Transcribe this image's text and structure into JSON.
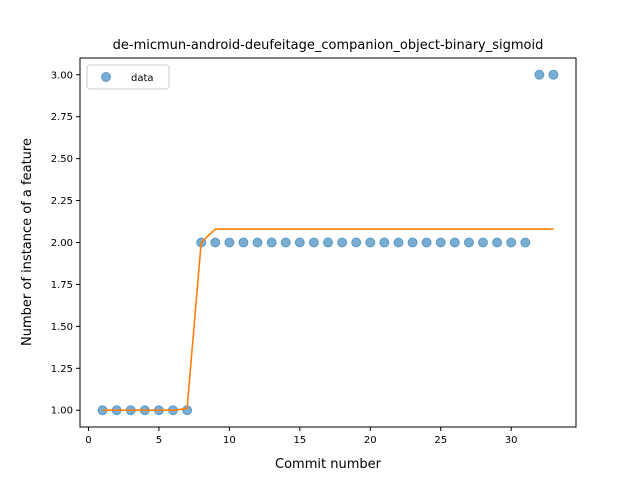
{
  "chart_data": {
    "type": "scatter",
    "title": "de-micmun-android-deufeitage_companion_object-binary_sigmoid",
    "xlabel": "Commit number",
    "ylabel": "Number of instance of a feature",
    "xlim": [
      -0.6,
      34.6
    ],
    "ylim": [
      0.9,
      3.1
    ],
    "xticks": [
      0,
      5,
      10,
      15,
      20,
      25,
      30
    ],
    "yticks": [
      1.0,
      1.25,
      1.5,
      1.75,
      2.0,
      2.25,
      2.5,
      2.75,
      3.0
    ],
    "yticks_labels": [
      "1.00",
      "1.25",
      "1.50",
      "1.75",
      "2.00",
      "2.25",
      "2.50",
      "2.75",
      "3.00"
    ],
    "grid": false,
    "legend": {
      "placement": "top-left",
      "entries": [
        "data"
      ]
    },
    "series": [
      {
        "name": "data",
        "kind": "scatter",
        "color": "#1f77b4",
        "x": [
          1,
          2,
          3,
          4,
          5,
          6,
          7,
          8,
          9,
          10,
          11,
          12,
          13,
          14,
          15,
          16,
          17,
          18,
          19,
          20,
          21,
          22,
          23,
          24,
          25,
          26,
          27,
          28,
          29,
          30,
          31,
          32,
          33
        ],
        "y": [
          1,
          1,
          1,
          1,
          1,
          1,
          1,
          2,
          2,
          2,
          2,
          2,
          2,
          2,
          2,
          2,
          2,
          2,
          2,
          2,
          2,
          2,
          2,
          2,
          2,
          2,
          2,
          2,
          2,
          2,
          2,
          3,
          3
        ]
      },
      {
        "kind": "line",
        "color": "#ff7f0e",
        "x": [
          1,
          2,
          3,
          4,
          5,
          6,
          7,
          8,
          9,
          10,
          11,
          12,
          13,
          14,
          15,
          16,
          17,
          18,
          19,
          20,
          21,
          22,
          23,
          24,
          25,
          26,
          27,
          28,
          29,
          30,
          31,
          32,
          33
        ],
        "y": [
          1,
          1,
          1,
          1,
          1,
          1,
          1.01,
          2,
          2.08,
          2.08,
          2.08,
          2.08,
          2.08,
          2.08,
          2.08,
          2.08,
          2.08,
          2.08,
          2.08,
          2.08,
          2.08,
          2.08,
          2.08,
          2.08,
          2.08,
          2.08,
          2.08,
          2.08,
          2.08,
          2.08,
          2.08,
          2.08,
          2.08
        ]
      }
    ]
  }
}
